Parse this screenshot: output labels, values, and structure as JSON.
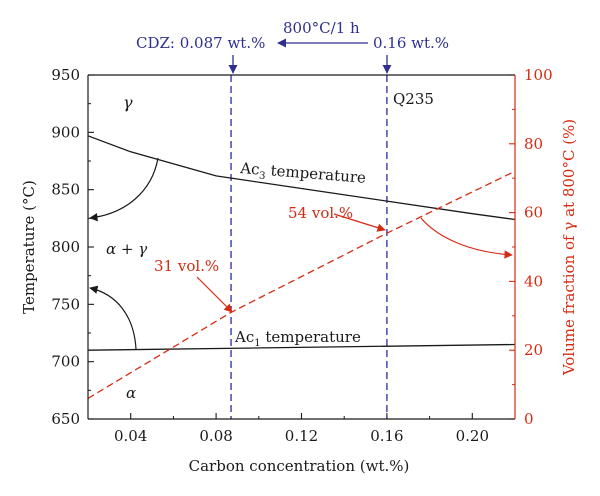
{
  "chart_data": {
    "type": "line",
    "xlabel": "Carbon concentration (wt.%)",
    "ylabel": "Temperature (°C)",
    "y2label": "Volume fraction of γ at 800°C (%)",
    "xlim": [
      0.02,
      0.22
    ],
    "ylim": [
      650,
      950
    ],
    "y2lim": [
      0,
      100
    ],
    "x_ticks": [
      0.04,
      0.08,
      0.12,
      0.16,
      0.2
    ],
    "x_tick_labels": [
      "0.04",
      "0.08",
      "0.12",
      "0.16",
      "0.20"
    ],
    "y_ticks": [
      650,
      700,
      750,
      800,
      850,
      900,
      950
    ],
    "y_tick_labels": [
      "650",
      "700",
      "750",
      "800",
      "850",
      "900",
      "950"
    ],
    "y2_ticks": [
      0,
      20,
      40,
      60,
      80,
      100
    ],
    "y2_tick_labels": [
      "0",
      "20",
      "40",
      "60",
      "80",
      "100"
    ],
    "series": [
      {
        "name": "Ac3 temperature",
        "axis": "left",
        "style": "solid",
        "color": "#1a1a1a",
        "x": [
          0.02,
          0.04,
          0.08,
          0.12,
          0.16,
          0.2,
          0.22
        ],
        "y": [
          897,
          883,
          862,
          851,
          840,
          829,
          824
        ]
      },
      {
        "name": "Ac1 temperature",
        "axis": "left",
        "style": "solid",
        "color": "#1a1a1a",
        "x": [
          0.02,
          0.22
        ],
        "y": [
          710,
          715
        ]
      },
      {
        "name": "",
        "axis": "right",
        "style": "dashed",
        "color": "#d62b12",
        "x": [
          0.02,
          0.087,
          0.16,
          0.22
        ],
        "y": [
          6,
          31,
          54,
          72
        ]
      }
    ],
    "vlines": [
      {
        "x": 0.087,
        "color": "#3a3aa6"
      },
      {
        "x": 0.16,
        "color": "#3a3aa6"
      }
    ],
    "color_axis_left": "#1a1a1a",
    "color_axis_right": "#d62b12",
    "color_annotation_blue": "#2f2f8f",
    "grid": false
  },
  "labels": {
    "cdz": "CDZ: 0.087 wt.%",
    "treatment": "800°C/1 h",
    "q235_wt": "0.16 wt.%",
    "q235": "Q235",
    "ac3_prefix": "Ac",
    "ac3_sub": "3",
    "ac3_suffix": " temperature",
    "ac1_prefix": "Ac",
    "ac1_sub": "1",
    "ac1_suffix": " temperature",
    "vol31": "31 vol.%",
    "vol54": "54 vol.%",
    "phase_gamma": "γ",
    "phase_alpha_gamma": "α + γ",
    "phase_alpha": "α"
  }
}
